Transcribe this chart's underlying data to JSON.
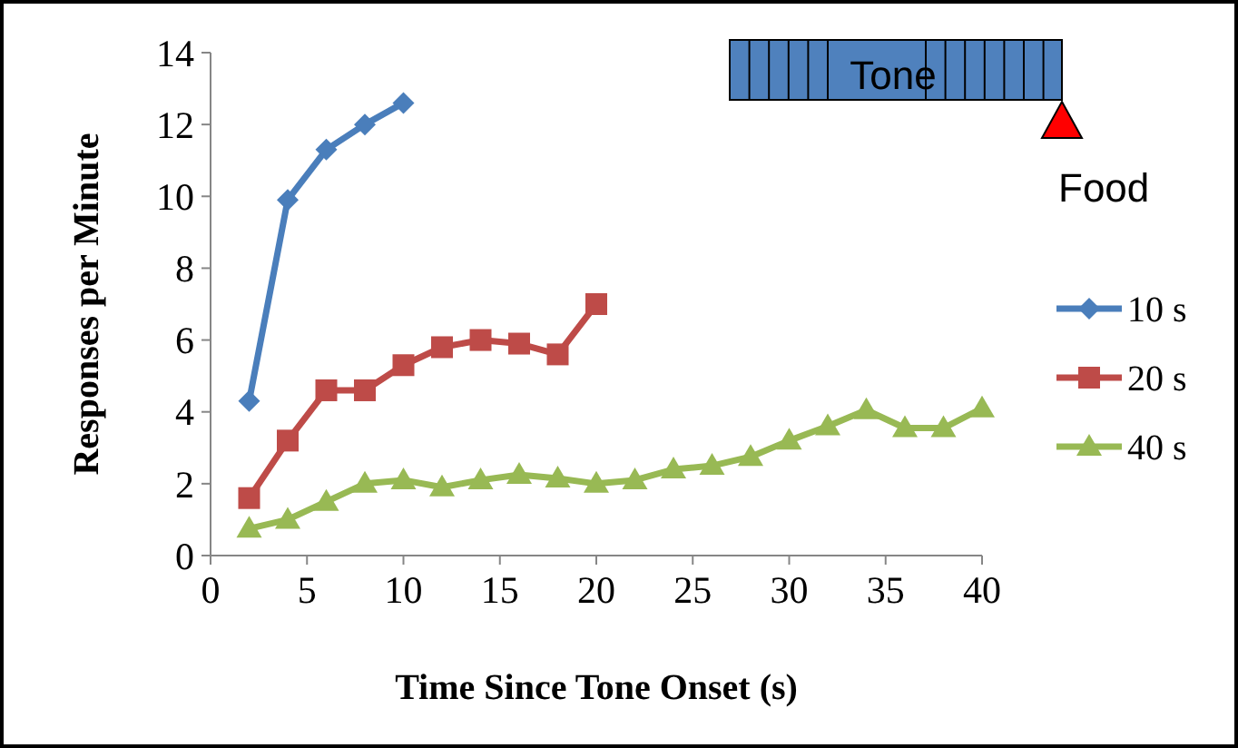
{
  "chart_data": {
    "type": "line",
    "xlabel": "Time Since Tone Onset (s)",
    "ylabel": "Responses per Minute",
    "annotations": [
      "Tone",
      "Food"
    ],
    "xlim": [
      0,
      40
    ],
    "xticks": [
      0,
      5,
      10,
      15,
      20,
      25,
      30,
      35,
      40
    ],
    "ylim": [
      0,
      14
    ],
    "yticks": [
      0,
      2,
      4,
      6,
      8,
      10,
      12,
      14
    ],
    "grid": false,
    "legend": "right",
    "line_style": "solid",
    "series": [
      {
        "name": "10 s",
        "color": "#4a7ebb",
        "marker": "diamond",
        "x": [
          2,
          4,
          6,
          8,
          10
        ],
        "values": [
          4.3,
          9.9,
          11.3,
          12.0,
          12.6
        ]
      },
      {
        "name": "20 s",
        "color": "#be4b48",
        "marker": "square",
        "x": [
          2,
          4,
          6,
          8,
          10,
          12,
          14,
          16,
          18,
          20
        ],
        "values": [
          1.6,
          3.2,
          4.6,
          4.6,
          5.3,
          5.8,
          6.0,
          5.9,
          5.6,
          7.0
        ]
      },
      {
        "name": "40 s",
        "color": "#98b954",
        "marker": "triangle",
        "x": [
          2,
          4,
          6,
          8,
          10,
          12,
          14,
          16,
          18,
          20,
          22,
          24,
          26,
          28,
          30,
          32,
          34,
          36,
          38,
          40
        ],
        "values": [
          0.75,
          1.0,
          1.5,
          2.0,
          2.1,
          1.9,
          2.1,
          2.25,
          2.15,
          2.0,
          2.1,
          2.4,
          2.5,
          2.75,
          3.2,
          3.6,
          4.05,
          3.55,
          3.55,
          4.1
        ]
      }
    ]
  }
}
